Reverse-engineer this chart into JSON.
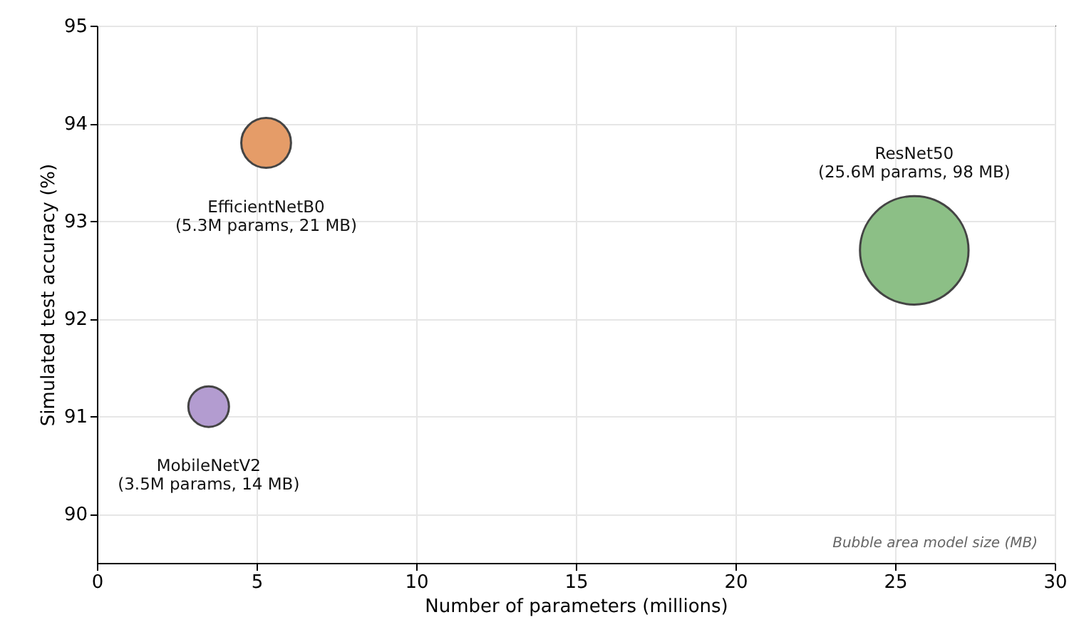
{
  "chart_data": {
    "type": "bubble",
    "xlabel": "Number of parameters (millions)",
    "ylabel": "Simulated test accuracy (%)",
    "xlim": [
      0,
      30
    ],
    "ylim": [
      89.5,
      95
    ],
    "xticks": [
      0,
      5,
      10,
      15,
      20,
      25,
      30
    ],
    "yticks": [
      90,
      91,
      92,
      93,
      94,
      95
    ],
    "grid": true,
    "series": [
      {
        "name": "EfficientNetB0",
        "color": "#e59c68",
        "x": [
          5.3
        ],
        "values": [
          93.8
        ],
        "sizes": [
          0.21
        ]
      },
      {
        "name": "MobileNetV2",
        "color": "#b39cd0",
        "x": [
          3.5
        ],
        "values": [
          91.1
        ],
        "sizes": [
          0.14
        ]
      },
      {
        "name": "ResNet50",
        "color": "#8cbf86",
        "x": [
          25.6
        ],
        "values": [
          92.7
        ],
        "sizes": [
          1
        ]
      }
    ],
    "annotations": [
      "(5.3M params, 21 MB)",
      "(3.5M params, 14 MB)",
      "(25.6M params, 98 MB)",
      "Bubble area  model size (MB)"
    ]
  }
}
